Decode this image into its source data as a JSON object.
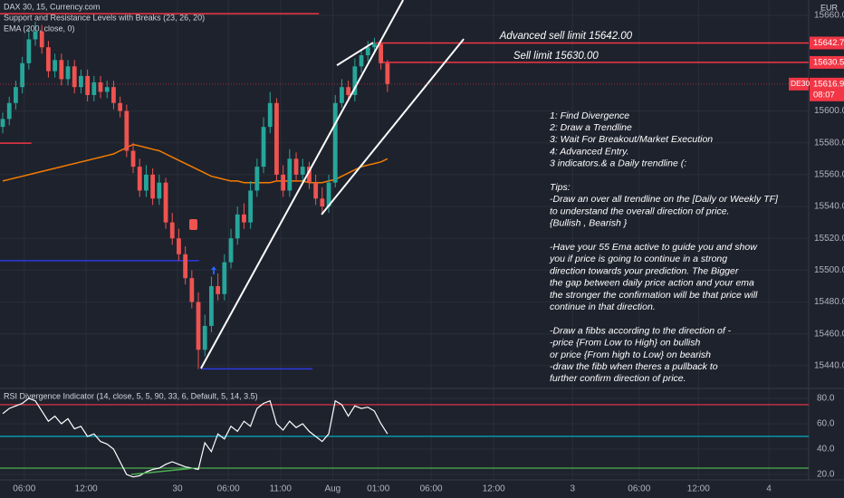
{
  "chart_data": {
    "type": "candlestick",
    "header": {
      "symbol": "DAX 30, 15, Currency.com",
      "indicator1": "Support and Resistance Levels with Breaks (23, 26, 20)",
      "indicator2": "EMA (200, close, 0)",
      "currency": "EUR",
      "rsi_title": "RSI Divergence Indicator (14, close, 5, 5, 90, 33, 6, Default, 5, 14, 3.5)"
    },
    "up_color": "#26a69a",
    "down_color": "#ef5350",
    "open": [
      15590,
      15595,
      15605,
      15615,
      15630,
      15645,
      15650,
      15640,
      15625,
      15632,
      15620,
      15628,
      15615,
      15622,
      15610,
      15618,
      15612,
      15615,
      15605,
      15600,
      15575,
      15565,
      15550,
      15560,
      15545,
      15555,
      15530,
      15520,
      15510,
      15495,
      15480,
      15450,
      15465,
      15490,
      15485,
      15505,
      15520,
      15535,
      15530,
      15550,
      15565,
      15590,
      15605,
      15560,
      15550,
      15570,
      15560,
      15565,
      15555,
      15545,
      15540,
      15555,
      15605,
      15615,
      15610,
      15628,
      15635,
      15640,
      15642,
      15630
    ],
    "high": [
      15599,
      15609,
      15619,
      15634,
      15652,
      15656,
      15654,
      15644,
      15636,
      15636,
      15632,
      15632,
      15626,
      15626,
      15622,
      15622,
      15619,
      15619,
      15609,
      15604,
      15580,
      15570,
      15566,
      15564,
      15560,
      15558,
      15536,
      15526,
      15515,
      15500,
      15486,
      15472,
      15496,
      15498,
      15510,
      15526,
      15540,
      15542,
      15556,
      15570,
      15596,
      15612,
      15608,
      15566,
      15576,
      15574,
      15570,
      15568,
      15560,
      15552,
      15560,
      15610,
      15620,
      15619,
      15633,
      15639,
      15644,
      15646,
      15645,
      15632
    ],
    "low": [
      15586,
      15591,
      15601,
      15611,
      15626,
      15641,
      15636,
      15621,
      15621,
      15616,
      15616,
      15611,
      15611,
      15606,
      15606,
      15608,
      15608,
      15601,
      15596,
      15571,
      15561,
      15546,
      15546,
      15541,
      15541,
      15526,
      15516,
      15506,
      15491,
      15476,
      15438,
      15446,
      15461,
      15481,
      15481,
      15501,
      15516,
      15526,
      15526,
      15546,
      15561,
      15586,
      15556,
      15546,
      15546,
      15556,
      15556,
      15551,
      15541,
      15536,
      15536,
      15552,
      15602,
      15606,
      15606,
      15624,
      15631,
      15636,
      15626,
      15612
    ],
    "close": [
      15595,
      15605,
      15615,
      15630,
      15645,
      15650,
      15640,
      15625,
      15632,
      15620,
      15628,
      15615,
      15622,
      15610,
      15618,
      15612,
      15615,
      15605,
      15600,
      15575,
      15565,
      15550,
      15560,
      15545,
      15555,
      15530,
      15520,
      15510,
      15495,
      15480,
      15450,
      15465,
      15490,
      15485,
      15505,
      15520,
      15535,
      15530,
      15550,
      15565,
      15590,
      15605,
      15560,
      15550,
      15570,
      15560,
      15565,
      15555,
      15545,
      15540,
      15555,
      15605,
      15615,
      15610,
      15628,
      15635,
      15640,
      15642,
      15630,
      15616.9
    ],
    "ema": {
      "color": "#f57c00",
      "values": [
        15556,
        15557,
        15558,
        15559,
        15560,
        15561,
        15562,
        15563,
        15564,
        15565,
        15566,
        15567,
        15568,
        15569,
        15570,
        15571,
        15572,
        15573,
        15575,
        15577,
        15579,
        15578,
        15577,
        15576,
        15575,
        15573,
        15571,
        15569,
        15567,
        15565,
        15563,
        15561,
        15559,
        15558,
        15557,
        15556,
        15556,
        15555,
        15555,
        15555,
        15555,
        15555,
        15556,
        15556,
        15556,
        15556,
        15556,
        15555,
        15555,
        15555,
        15556,
        15557,
        15559,
        15561,
        15563,
        15565,
        15566,
        15567,
        15568,
        15570
      ]
    },
    "xlim": [
      -0.42,
      123.6
    ],
    "ylim": [
      15426.3,
      15669.7
    ],
    "yticks": [
      {
        "value": 15660,
        "label": "15660.0"
      },
      {
        "value": 15600,
        "label": "15600.0"
      },
      {
        "value": 15580,
        "label": "15580.0"
      },
      {
        "value": 15560,
        "label": "15560.0"
      },
      {
        "value": 15540,
        "label": "15540.0"
      },
      {
        "value": 15520,
        "label": "15520.0"
      },
      {
        "value": 15500,
        "label": "15500.0"
      },
      {
        "value": 15480,
        "label": "15480.0"
      },
      {
        "value": 15460,
        "label": "15460.0"
      },
      {
        "value": 15440,
        "label": "15440.0"
      }
    ],
    "xticks": [
      {
        "value": 3.3,
        "label": "06:00"
      },
      {
        "value": 12.8,
        "label": "12:00"
      },
      {
        "value": 26.8,
        "label": "30"
      },
      {
        "value": 34.6,
        "label": "06:00"
      },
      {
        "value": 42.6,
        "label": "11:00"
      },
      {
        "value": 50.6,
        "label": "Aug"
      },
      {
        "value": 57.6,
        "label": "01:00"
      },
      {
        "value": 65.7,
        "label": "06:00"
      },
      {
        "value": 75.3,
        "label": "12:00"
      },
      {
        "value": 87.4,
        "label": "3"
      },
      {
        "value": 97.6,
        "label": "06:00"
      },
      {
        "value": 106.7,
        "label": "12:00"
      },
      {
        "value": 117.5,
        "label": "4"
      }
    ],
    "grid": true,
    "levels": [
      {
        "value": 15661.1,
        "from": -0.42,
        "to": 48.5,
        "color": "#f23645"
      },
      {
        "value": 15579.8,
        "from": -0.42,
        "to": 4.4,
        "color": "#f23645"
      },
      {
        "value": 15506,
        "from": -0.42,
        "to": 30.1,
        "color": "#2b3ae0"
      },
      {
        "value": 15438,
        "from": 30.4,
        "to": 47.5,
        "color": "#2b3ae0"
      },
      {
        "value": 15642.7,
        "from": 56.5,
        "to": 123.6,
        "color": "#f23645",
        "tag": true
      },
      {
        "value": 15630.5,
        "from": 57.9,
        "to": 123.6,
        "color": "#f23645",
        "tag": true
      }
    ],
    "last_price": {
      "value": 15616.9,
      "symbol": "DE30",
      "countdown": "08:07",
      "color": "#f23645"
    },
    "trendlines": [
      {
        "x": [
          30.4,
          61.4
        ],
        "y": [
          15438.3,
          15669.7
        ]
      },
      {
        "x": [
          48.9,
          70.7
        ],
        "y": [
          15535,
          15645.2
        ]
      },
      {
        "x": [
          51.25,
          56.8
        ],
        "y": [
          15628.7,
          15642.9
        ]
      }
    ],
    "annotations": [
      {
        "text": "Advanced sell limit 15642.00",
        "x": 76.2,
        "y": 15647
      },
      {
        "text": "Sell limit 15630.00",
        "x": 78.3,
        "y": 15634.5
      }
    ],
    "notes": [
      [
        "1: Find Divergence",
        "2: Draw a Trendline",
        "3: Wait For Breakout/Market Execution",
        "4: Advanced Entry.",
        " 3 indicators.& a Daily trendline (:"
      ],
      [
        "Tips:",
        "-Draw an over all trendline on the [Daily or Weekly TF]",
        "to understand the overall direction of price.",
        "{Bullish , Bearish }"
      ],
      [
        "-Have your 55 Ema active to guide you and show",
        "you if price is going to continue in a strong",
        "direction towards your prediction. The Bigger",
        "the gap between daily price action and your ema",
        "the stronger the confirmation will be that price will",
        "continue in that direction."
      ],
      [
        "-Draw a fibbs according to the direction of -",
        "-price {From Low to High} on bullish",
        "or price {From high to Low} on bearish",
        "-draw the fibb when theres a pullback to",
        "further confirm direction of price."
      ]
    ],
    "rsi": {
      "color": "#ffffff",
      "values": [
        68,
        72,
        74,
        76,
        80,
        78,
        70,
        62,
        66,
        60,
        64,
        56,
        58,
        50,
        52,
        46,
        44,
        40,
        30,
        20,
        18,
        19,
        22,
        24,
        25,
        28,
        30,
        28,
        26,
        25,
        24,
        45,
        38,
        52,
        48,
        58,
        54,
        62,
        58,
        72,
        76,
        78,
        60,
        55,
        62,
        57,
        60,
        54,
        50,
        46,
        52,
        78,
        75,
        66,
        74,
        72,
        73,
        70,
        60,
        52
      ],
      "ylim": [
        15.7,
        87.1
      ],
      "yticks": [
        {
          "value": 80,
          "label": "80.0"
        },
        {
          "value": 60,
          "label": "60.0"
        },
        {
          "value": 40,
          "label": "40.0"
        },
        {
          "value": 20,
          "label": "20.0"
        }
      ],
      "levels": [
        {
          "value": 75,
          "color": "#f23645"
        },
        {
          "value": 50,
          "color": "#00bcd4"
        },
        {
          "value": 25,
          "color": "#4caf50"
        }
      ],
      "trendline": {
        "x": [
          19.7,
          29.4
        ],
        "y": [
          20,
          25
        ],
        "color": "#4caf50"
      }
    }
  }
}
